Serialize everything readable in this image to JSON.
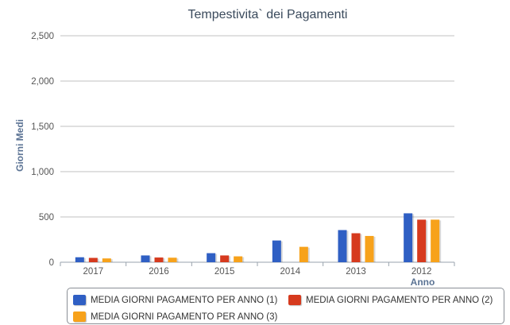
{
  "chart_data": {
    "type": "bar",
    "title": "Tempestivita` dei Pagamenti",
    "xlabel": "Anno",
    "ylabel": "Giorni Medi",
    "ylim": [
      0,
      2500
    ],
    "yticks": [
      "0",
      "500",
      "1,000",
      "1,500",
      "2,000",
      "2,500"
    ],
    "ytick_values": [
      0,
      500,
      1000,
      1500,
      2000,
      2500
    ],
    "categories": [
      "2017",
      "2016",
      "2015",
      "2014",
      "2013",
      "2012"
    ],
    "series": [
      {
        "name": "MEDIA GIORNI PAGAMENTO PER ANNO (1)",
        "color": "#2f5fc4",
        "values": [
          55,
          75,
          100,
          240,
          355,
          540
        ]
      },
      {
        "name": "MEDIA GIORNI PAGAMENTO PER ANNO (2)",
        "color": "#d63a1e",
        "values": [
          48,
          52,
          75,
          0,
          320,
          470
        ]
      },
      {
        "name": "MEDIA GIORNI PAGAMENTO PER ANNO (3)",
        "color": "#f7a21b",
        "values": [
          42,
          50,
          65,
          170,
          290,
          470
        ]
      }
    ],
    "grid": true,
    "legend_position": "bottom"
  }
}
